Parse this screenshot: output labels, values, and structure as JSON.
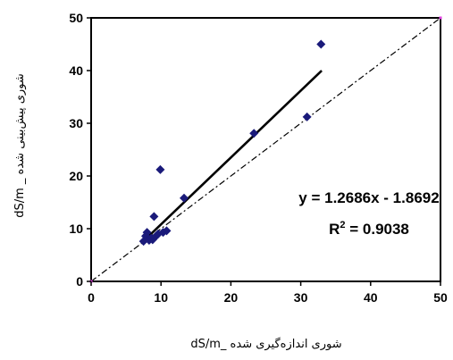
{
  "chart_data": {
    "type": "scatter",
    "xlabel": "شوری اندازه‌گیری شده _dS/m",
    "ylabel": "شوری پیش‌بینی شده _ dS/m",
    "xlim": [
      0,
      50
    ],
    "ylim": [
      0,
      50
    ],
    "x_ticks": [
      0,
      10,
      20,
      30,
      40,
      50
    ],
    "y_ticks": [
      0,
      10,
      20,
      30,
      40,
      50
    ],
    "grid": false,
    "legend": "none",
    "series": [
      {
        "points": [
          {
            "x": 7.5,
            "y": 7.6
          },
          {
            "x": 7.8,
            "y": 8.6
          },
          {
            "x": 8.0,
            "y": 9.3
          },
          {
            "x": 8.3,
            "y": 7.8
          },
          {
            "x": 8.6,
            "y": 8.2
          },
          {
            "x": 8.8,
            "y": 7.9
          },
          {
            "x": 9.0,
            "y": 12.3
          },
          {
            "x": 9.3,
            "y": 8.6
          },
          {
            "x": 9.6,
            "y": 9.0
          },
          {
            "x": 9.9,
            "y": 21.2
          },
          {
            "x": 10.3,
            "y": 9.3
          },
          {
            "x": 10.8,
            "y": 9.6
          },
          {
            "x": 13.3,
            "y": 15.8
          },
          {
            "x": 23.3,
            "y": 28.1
          },
          {
            "x": 30.9,
            "y": 31.2
          },
          {
            "x": 32.9,
            "y": 45.0
          }
        ],
        "color": "#1a1a7a"
      }
    ],
    "trendline": {
      "slope": 1.2686,
      "intercept": -1.8692,
      "x_range": [
        7.5,
        33
      ]
    },
    "reference_line": {
      "type": "1:1",
      "from": [
        0,
        0
      ],
      "to": [
        50,
        50
      ]
    },
    "equation_text": "y = 1.2686x - 1.8692",
    "r2_text_prefix": "R",
    "r2_text_sup": "2",
    "r2_text_suffix": " = 0.9038"
  }
}
